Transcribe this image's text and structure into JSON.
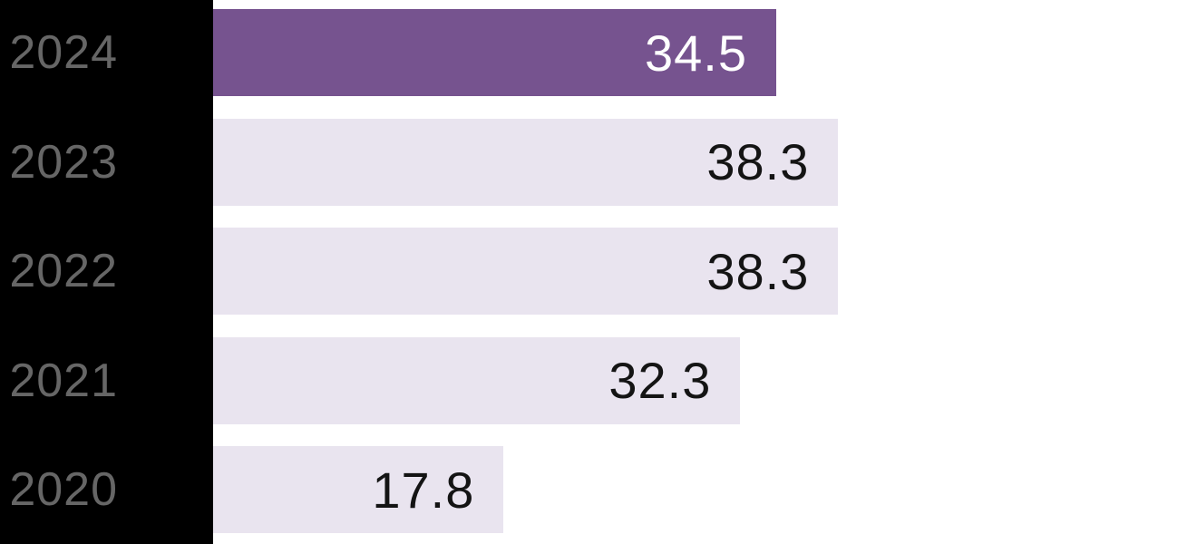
{
  "chart_data": {
    "type": "bar",
    "orientation": "horizontal",
    "title": "",
    "xlabel": "",
    "ylabel": "",
    "categories": [
      "2024",
      "2023",
      "2022",
      "2021",
      "2020"
    ],
    "values": [
      34.5,
      38.3,
      38.3,
      32.3,
      17.8
    ],
    "value_labels": [
      "34.5",
      "38.3",
      "38.3",
      "32.3",
      "17.8"
    ],
    "xlim": [
      0,
      38.3
    ],
    "grid": false,
    "legend": false,
    "highlight_index": 0,
    "colors": {
      "highlight_bar": "#76538F",
      "bar": "#E9E4EF",
      "highlight_value_text": "#FFFFFF",
      "value_text": "#141414",
      "category_text": "#666666",
      "panel_background": "#000000",
      "page_background": "#FFFFFF"
    }
  }
}
